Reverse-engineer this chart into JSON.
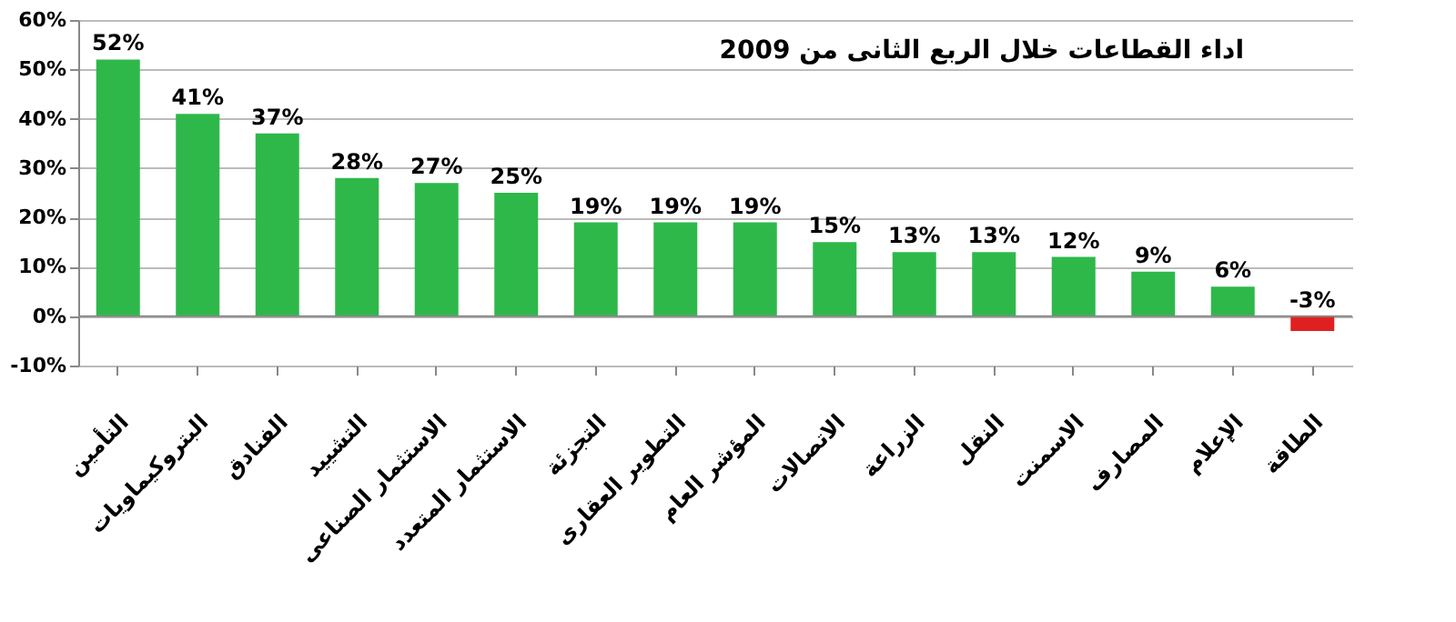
{
  "chart_data": {
    "type": "bar",
    "title": "اداء القطاعات خلال الربع الثانى من 2009",
    "categories": [
      "التأمين",
      "البتروكيماويات",
      "الفنادق",
      "التشييد",
      "الاستثمار الصناعى",
      "الاستثمار المتعدد",
      "التجزئة",
      "التطوير العقارى",
      "المؤشر العام",
      "الاتصالات",
      "الزراعة",
      "النقل",
      "الاسمنت",
      "المصارف",
      "الإعلام",
      "الطاقة"
    ],
    "values": [
      52,
      41,
      37,
      28,
      27,
      25,
      19,
      19,
      19,
      15,
      13,
      13,
      12,
      9,
      6,
      -3
    ],
    "colors": [
      "#2eb84a",
      "#2eb84a",
      "#2eb84a",
      "#2eb84a",
      "#2eb84a",
      "#2eb84a",
      "#2eb84a",
      "#2eb84a",
      "#2eb84a",
      "#2eb84a",
      "#2eb84a",
      "#2eb84a",
      "#2eb84a",
      "#2eb84a",
      "#2eb84a",
      "#e02020"
    ],
    "value_labels": [
      "52%",
      "41%",
      "37%",
      "28%",
      "27%",
      "25%",
      "19%",
      "19%",
      "19%",
      "15%",
      "13%",
      "13%",
      "12%",
      "9%",
      "6%",
      "-3%"
    ],
    "ylim": [
      -10,
      60
    ],
    "yticks": [
      {
        "value": -10,
        "label": "-10%"
      },
      {
        "value": 0,
        "label": "0%"
      },
      {
        "value": 10,
        "label": "10%"
      },
      {
        "value": 20,
        "label": "20%"
      },
      {
        "value": 30,
        "label": "30%"
      },
      {
        "value": 40,
        "label": "40%"
      },
      {
        "value": 50,
        "label": "50%"
      },
      {
        "value": 60,
        "label": "60%"
      }
    ],
    "grid": "y"
  }
}
